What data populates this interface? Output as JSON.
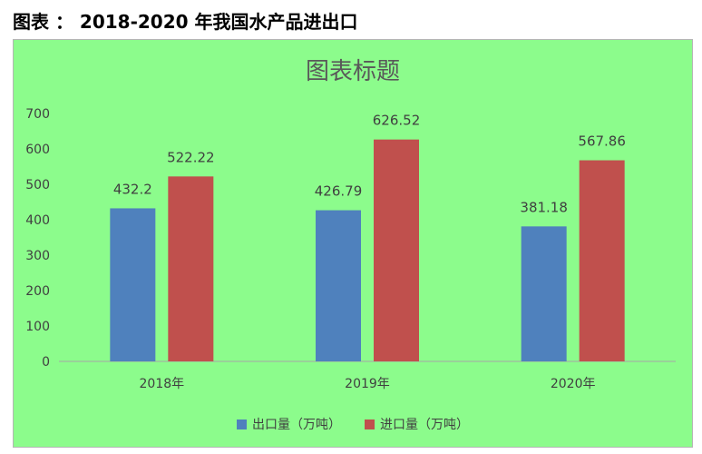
{
  "caption": "图表 ： 2018-2020 年我国水产品进出口",
  "chart_data": {
    "type": "bar",
    "title": "图表标题",
    "categories": [
      "2018年",
      "2019年",
      "2020年"
    ],
    "series": [
      {
        "name": "出口量（万吨）",
        "values": [
          432.2,
          426.79,
          381.18
        ],
        "color": "#4f81bd"
      },
      {
        "name": "进口量（万吨）",
        "values": [
          522.22,
          626.52,
          567.86
        ],
        "color": "#c0504d"
      }
    ],
    "data_labels": [
      [
        "432.2",
        "426.79",
        "381.18"
      ],
      [
        "522.22",
        "626.52",
        "567.86"
      ]
    ],
    "yticks": [
      "0",
      "100",
      "200",
      "300",
      "400",
      "500",
      "600",
      "700"
    ],
    "ylim": [
      0,
      700
    ],
    "grid": false,
    "legend_position": "bottom",
    "background": "#8cfc8c"
  }
}
